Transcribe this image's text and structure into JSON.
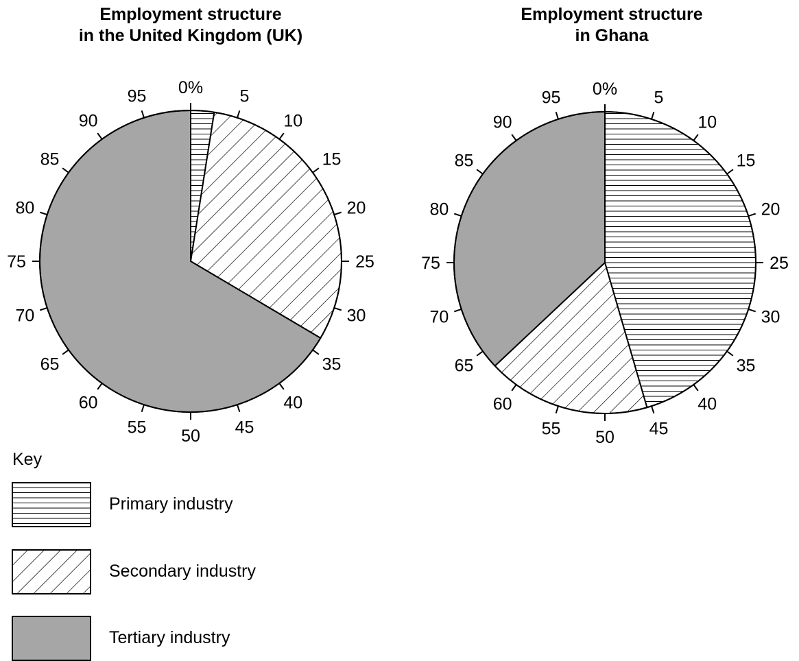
{
  "chart_data": [
    {
      "type": "pie",
      "title_lines": [
        "Employment structure",
        "in the United Kingdom (UK)"
      ],
      "scale_ticks": [
        "0%",
        "5",
        "10",
        "15",
        "20",
        "25",
        "30",
        "35",
        "40",
        "45",
        "50",
        "55",
        "60",
        "65",
        "70",
        "75",
        "80",
        "85",
        "90",
        "95"
      ],
      "slices": [
        {
          "category": "Primary industry",
          "value": 2.5
        },
        {
          "category": "Secondary industry",
          "value": 31
        },
        {
          "category": "Tertiary industry",
          "value": 66.5
        }
      ]
    },
    {
      "type": "pie",
      "title_lines": [
        "Employment structure",
        "in Ghana"
      ],
      "scale_ticks": [
        "0%",
        "5",
        "10",
        "15",
        "20",
        "25",
        "30",
        "35",
        "40",
        "45",
        "50",
        "55",
        "60",
        "65",
        "70",
        "75",
        "80",
        "85",
        "90",
        "95"
      ],
      "slices": [
        {
          "category": "Primary industry",
          "value": 45.5
        },
        {
          "category": "Secondary industry",
          "value": 17.5
        },
        {
          "category": "Tertiary industry",
          "value": 37
        }
      ]
    }
  ],
  "key": {
    "heading": "Key",
    "items": [
      {
        "label": "Primary industry",
        "pattern": "horizontal-lines"
      },
      {
        "label": "Secondary industry",
        "pattern": "diagonal-lines"
      },
      {
        "label": "Tertiary industry",
        "pattern": "solid-grey"
      }
    ]
  },
  "colors": {
    "tertiary_fill": "#a6a6a6",
    "outline": "#000000",
    "hatch": "#000000"
  }
}
